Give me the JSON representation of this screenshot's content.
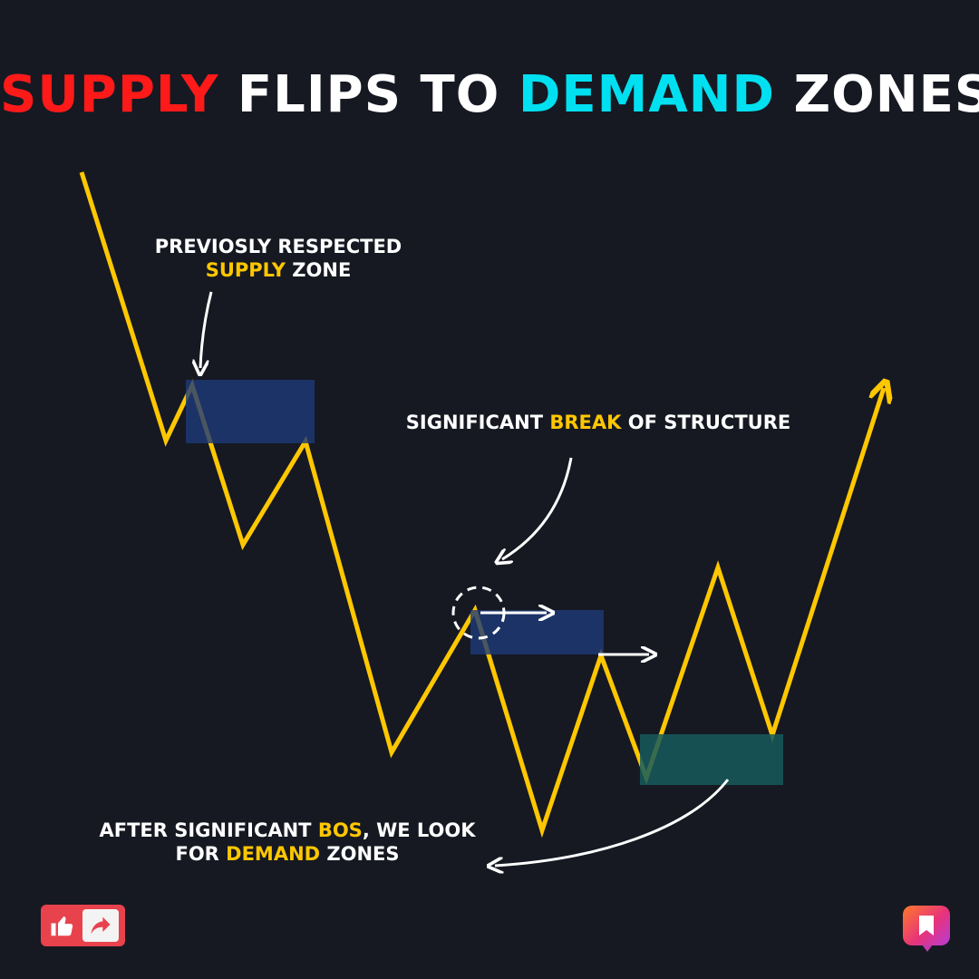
{
  "title": {
    "word1": "SUPPLY",
    "word2": "FLIPS TO",
    "word3": "DEMAND",
    "word4": "ZONES"
  },
  "annotations": {
    "supply_zone": {
      "line1": "PREVIOSLY RESPECTED",
      "hl": "SUPPLY",
      "rest": "ZONE"
    },
    "bos": {
      "pre": "SIGNIFICANT",
      "hl": "BREAK",
      "post": "OF STRUCTURE"
    },
    "demand": {
      "line1_pre": "AFTER SIGNIFICANT",
      "line1_hl": "BOS",
      "line1_post": ", WE LOOK",
      "line2_pre": "FOR",
      "line2_hl": "DEMAND",
      "line2_post": "ZONES"
    }
  },
  "icons": {
    "like": "thumbs-up-icon",
    "share": "share-arrow-icon",
    "bookmark": "bookmark-icon"
  },
  "colors": {
    "background": "#161922",
    "price_line": "#ffc700",
    "supply_zone": "#1d3a78",
    "demand_zone": "#165a5c",
    "title_red": "#ff1a1a",
    "title_cyan": "#00e0f0",
    "highlight": "#ffc700"
  }
}
